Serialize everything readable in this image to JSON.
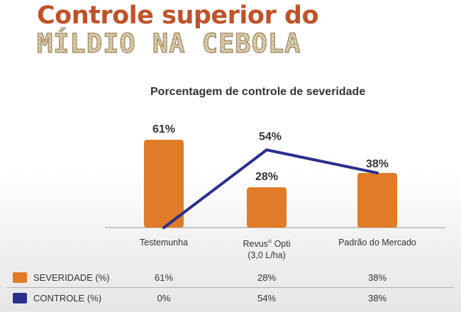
{
  "colors": {
    "title": "#c0522a",
    "bar": "#e07b28",
    "line": "#2a2f8c",
    "axis": "#999999",
    "text": "#333333"
  },
  "header": {
    "line1": "Controle superior do",
    "line2": "MÍLDIO NA CEBOLA"
  },
  "chart_data": {
    "type": "bar",
    "title": "Porcentagem de controle de severidade",
    "categories": [
      "Testemunha",
      "Revus® Opti (3,0 L/ha)",
      "Padrão do Mercado"
    ],
    "category_parts": [
      {
        "main": "Testemunha",
        "sup": "",
        "rest": "",
        "line2": ""
      },
      {
        "main": "Revus",
        "sup": "®",
        "rest": " Opti",
        "line2": "(3,0 L/ha)"
      },
      {
        "main": "Padrão do Mercado",
        "sup": "",
        "rest": "",
        "line2": ""
      }
    ],
    "series": [
      {
        "name": "SEVERIDADE (%)",
        "kind": "bar",
        "values": [
          61,
          28,
          38
        ],
        "labels": [
          "61%",
          "28%",
          "38%"
        ]
      },
      {
        "name": "CONTROLE (%)",
        "kind": "line",
        "values": [
          0,
          54,
          38
        ],
        "labels": [
          "0%",
          "54%",
          "38%"
        ]
      }
    ],
    "ylim": [
      0,
      70
    ],
    "xlabel": "",
    "ylabel": "",
    "grid": false
  },
  "table": {
    "rows": [
      {
        "label": "SEVERIDADE (%)",
        "values": [
          "61%",
          "28%",
          "38%"
        ]
      },
      {
        "label": "CONTROLE (%)",
        "values": [
          "0%",
          "54%",
          "38%"
        ]
      }
    ]
  }
}
